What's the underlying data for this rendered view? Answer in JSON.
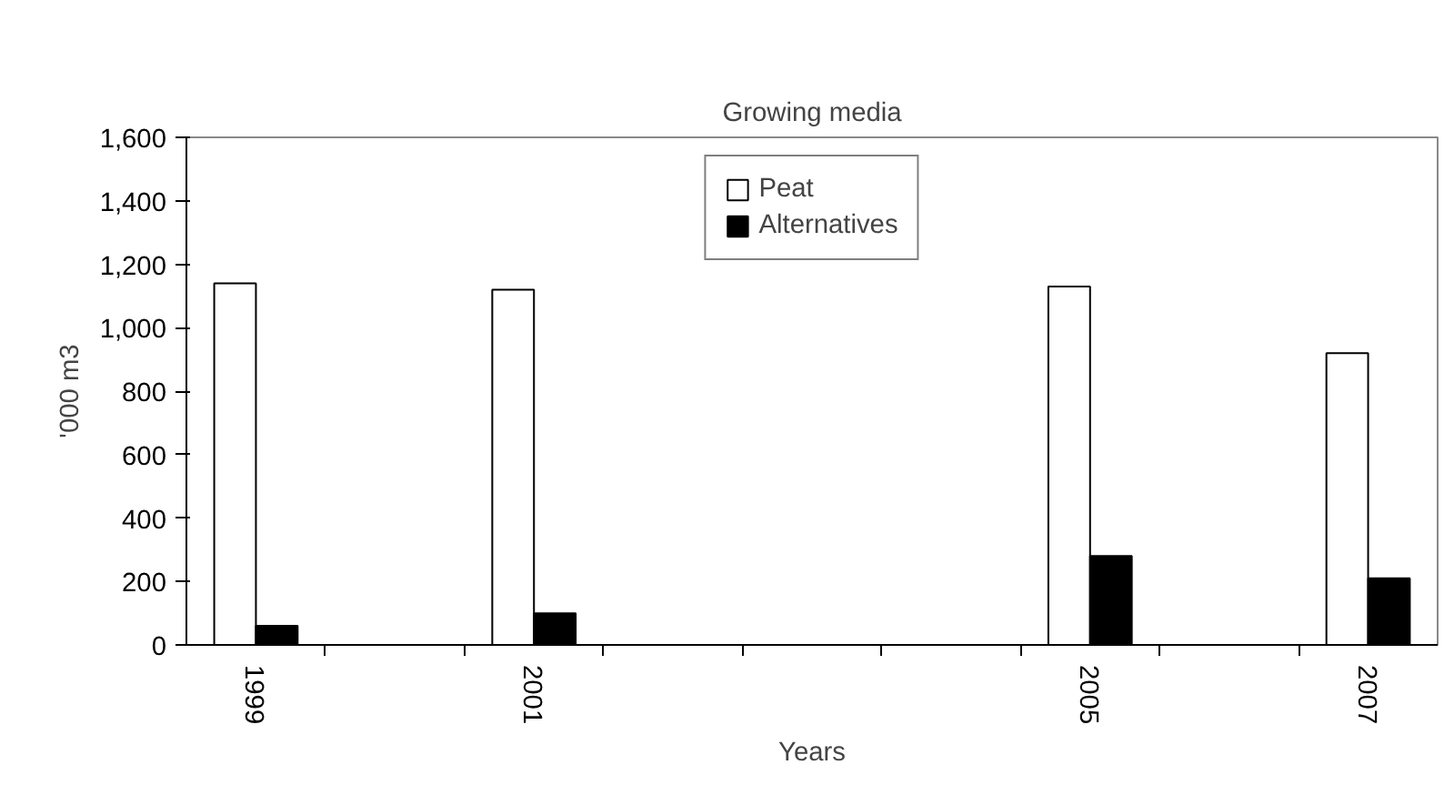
{
  "chart_data": {
    "type": "bar",
    "title": "Growing media",
    "xlabel": "Years",
    "ylabel": "'000 m3",
    "categories": [
      "1999",
      null,
      "2001",
      null,
      null,
      null,
      "2005",
      null,
      "2007"
    ],
    "series": [
      {
        "name": "Peat",
        "color": "#ffffff",
        "values": [
          1140,
          null,
          1120,
          null,
          null,
          null,
          1130,
          null,
          920
        ]
      },
      {
        "name": "Alternatives",
        "color": "#000000",
        "values": [
          60,
          null,
          100,
          null,
          null,
          null,
          280,
          null,
          210
        ]
      }
    ],
    "ylim": [
      0,
      1600
    ],
    "yticks": [
      0,
      {
        "value": 200,
        "label": "200"
      },
      {
        "value": 400,
        "label": "400"
      },
      {
        "value": 600,
        "label": "600"
      },
      {
        "value": 800,
        "label": "800"
      },
      {
        "value": 1000,
        "label": "1,000"
      },
      {
        "value": 1200,
        "label": "1,200"
      },
      {
        "value": 1400,
        "label": "1,400"
      },
      {
        "value": 1600,
        "label": "1,600"
      }
    ],
    "grid": false,
    "legend": "top"
  }
}
